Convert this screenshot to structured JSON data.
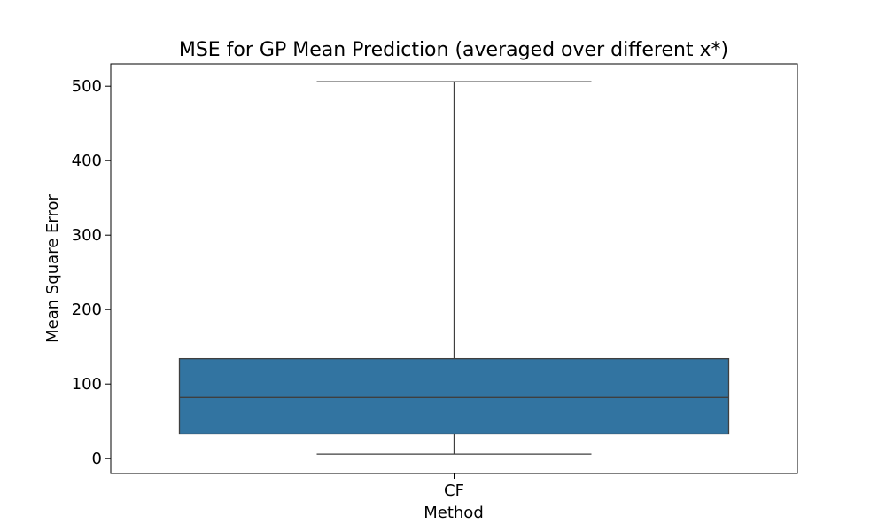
{
  "chart_data": {
    "type": "box",
    "title": "MSE for GP Mean Prediction (averaged over different x*)",
    "xlabel": "Method",
    "ylabel": "Mean Square Error",
    "categories": [
      "CF"
    ],
    "boxes": [
      {
        "category": "CF",
        "whisker_low": 6,
        "q1": 33,
        "median": 82,
        "q3": 134,
        "whisker_high": 506
      }
    ],
    "ylim": [
      -20,
      530
    ],
    "yticks": [
      0,
      100,
      200,
      300,
      400,
      500
    ],
    "grid": false,
    "box_color": "#3274a1",
    "line_color": "#3f3f3f"
  }
}
